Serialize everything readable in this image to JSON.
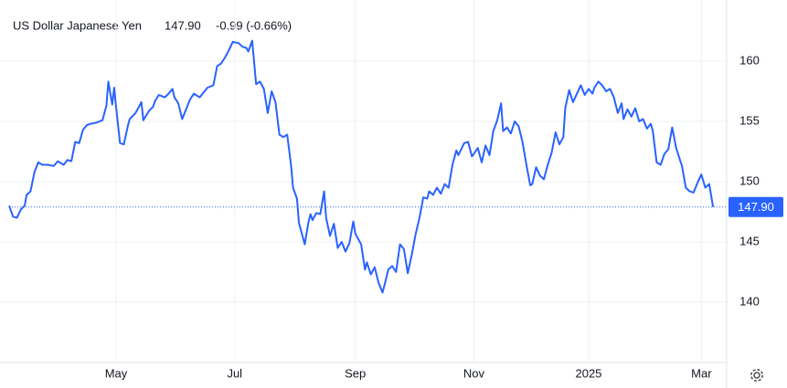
{
  "chart_data": {
    "type": "line",
    "title": "US Dollar Japanese Yen",
    "change": "-0.99 (-0.66%)",
    "last_price": {
      "value": 147.9,
      "label": "147.90"
    },
    "color": "#2962ff",
    "change_color": "#e5484d",
    "grid": true,
    "xlim": [
      0,
      369
    ],
    "ylim": [
      135,
      165
    ],
    "xticks": [
      {
        "value": 55,
        "label": "May"
      },
      {
        "value": 116,
        "label": "Jul"
      },
      {
        "value": 178,
        "label": "Sep"
      },
      {
        "value": 239,
        "label": "Nov"
      },
      {
        "value": 298,
        "label": "2025"
      },
      {
        "value": 356,
        "label": "Mar"
      }
    ],
    "yticks": [
      140,
      145,
      150,
      155,
      160
    ],
    "x": [
      0,
      2,
      4,
      6,
      8,
      9,
      11,
      13,
      15,
      17,
      20,
      23,
      25,
      28,
      30,
      32,
      34,
      36,
      38,
      40,
      42,
      45,
      48,
      50,
      51,
      53,
      54,
      55,
      57,
      59,
      61,
      62,
      65,
      68,
      69,
      72,
      74,
      75,
      77,
      80,
      82,
      84,
      85,
      87,
      89,
      91,
      93,
      95,
      98,
      100,
      102,
      105,
      107,
      109,
      111,
      113,
      115,
      118,
      120,
      122,
      123,
      125,
      127,
      129,
      131,
      133,
      135,
      137,
      139,
      141,
      143,
      145,
      146,
      148,
      149,
      152,
      154,
      155,
      156,
      158,
      160,
      162,
      163,
      165,
      167,
      169,
      171,
      173,
      175,
      177,
      178,
      181,
      183,
      184,
      186,
      188,
      190,
      192,
      193,
      195,
      197,
      199,
      201,
      203,
      205,
      207,
      209,
      211,
      213,
      215,
      216,
      218,
      220,
      222,
      224,
      226,
      228,
      230,
      231,
      234,
      236,
      238,
      239,
      241,
      243,
      245,
      247,
      249,
      251,
      253,
      254,
      256,
      258,
      260,
      262,
      264,
      266,
      268,
      269,
      271,
      273,
      275,
      277,
      279,
      281,
      283,
      285,
      286,
      288,
      290,
      292,
      294,
      296,
      298,
      300,
      301,
      303,
      305,
      307,
      309,
      311,
      313,
      315,
      316,
      318,
      320,
      322,
      324,
      326,
      328,
      330,
      331,
      333,
      335,
      337,
      339,
      341,
      343,
      345,
      346,
      348,
      350,
      352,
      354,
      356,
      358,
      360,
      362
    ],
    "values": [
      148.0,
      147.1,
      147.0,
      147.7,
      148.0,
      148.9,
      149.2,
      150.8,
      151.6,
      151.4,
      151.4,
      151.3,
      151.7,
      151.4,
      151.8,
      151.7,
      153.3,
      153.2,
      154.3,
      154.7,
      154.8,
      154.9,
      155.1,
      156.3,
      158.3,
      156.4,
      157.8,
      156.2,
      153.2,
      153.1,
      154.6,
      155.2,
      155.7,
      156.6,
      155.1,
      155.9,
      156.2,
      156.7,
      157.2,
      157.0,
      157.3,
      157.7,
      157.0,
      156.5,
      155.2,
      156.0,
      156.8,
      157.3,
      157.0,
      157.4,
      157.8,
      158.0,
      159.6,
      159.8,
      160.3,
      160.9,
      161.6,
      161.5,
      161.2,
      161.1,
      160.8,
      161.7,
      158.1,
      158.3,
      157.7,
      155.7,
      157.5,
      156.6,
      153.9,
      153.7,
      153.9,
      151.3,
      149.5,
      148.6,
      146.6,
      144.8,
      146.7,
      147.3,
      146.8,
      147.4,
      147.3,
      149.2,
      147.0,
      145.5,
      146.5,
      144.5,
      145.0,
      144.2,
      144.9,
      146.7,
      145.7,
      144.8,
      142.7,
      143.3,
      142.3,
      142.9,
      141.6,
      140.8,
      141.4,
      142.7,
      143.0,
      142.5,
      144.8,
      144.4,
      142.4,
      143.9,
      145.6,
      147.0,
      148.7,
      148.6,
      149.2,
      148.9,
      149.5,
      149.0,
      149.8,
      149.5,
      151.4,
      152.6,
      152.2,
      153.2,
      153.3,
      152.1,
      152.3,
      152.8,
      151.6,
      153.0,
      152.2,
      154.2,
      155.1,
      156.5,
      154.2,
      154.5,
      154.0,
      155.0,
      154.6,
      153.3,
      151.4,
      149.7,
      149.8,
      151.2,
      150.5,
      150.2,
      151.4,
      152.4,
      154.1,
      153.1,
      153.7,
      156.1,
      157.6,
      156.6,
      157.3,
      158.0,
      157.2,
      157.7,
      157.3,
      157.8,
      158.3,
      158.0,
      157.5,
      157.7,
      157.0,
      155.7,
      156.5,
      155.2,
      156.0,
      155.4,
      156.1,
      155.0,
      155.2,
      154.4,
      154.8,
      154.2,
      151.6,
      151.4,
      152.3,
      152.7,
      154.5,
      152.8,
      151.8,
      151.3,
      149.5,
      149.2,
      149.1,
      149.9,
      150.6,
      149.5,
      149.8,
      147.9
    ]
  }
}
